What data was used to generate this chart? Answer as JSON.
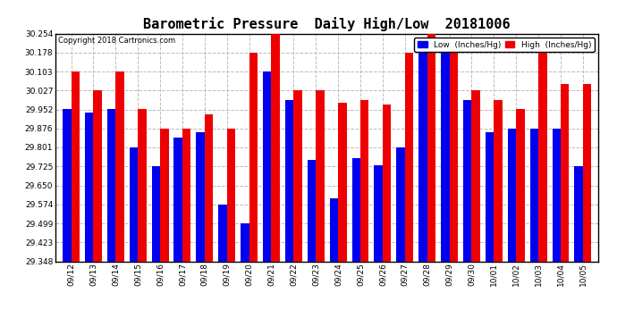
{
  "title": "Barometric Pressure  Daily High/Low  20181006",
  "copyright": "Copyright 2018 Cartronics.com",
  "legend_low": "Low  (Inches/Hg)",
  "legend_high": "High  (Inches/Hg)",
  "dates": [
    "09/12",
    "09/13",
    "09/14",
    "09/15",
    "09/16",
    "09/17",
    "09/18",
    "09/19",
    "09/20",
    "09/21",
    "09/22",
    "09/23",
    "09/24",
    "09/25",
    "09/26",
    "09/27",
    "09/28",
    "09/29",
    "09/30",
    "10/01",
    "10/02",
    "10/03",
    "10/04",
    "10/05"
  ],
  "low": [
    29.952,
    29.94,
    29.952,
    29.8,
    29.725,
    29.84,
    29.86,
    29.574,
    29.499,
    30.103,
    29.99,
    29.75,
    29.6,
    29.76,
    29.73,
    29.801,
    30.178,
    30.178,
    29.99,
    29.86,
    29.876,
    29.876,
    29.876,
    29.725
  ],
  "high": [
    30.103,
    30.027,
    30.103,
    29.952,
    29.876,
    29.876,
    29.933,
    29.876,
    30.178,
    30.254,
    30.027,
    30.027,
    29.98,
    29.99,
    29.97,
    30.178,
    30.254,
    30.178,
    30.027,
    29.99,
    29.952,
    30.178,
    30.054,
    30.054
  ],
  "ylim_min": 29.348,
  "ylim_max": 30.254,
  "yticks": [
    29.348,
    29.423,
    29.499,
    29.574,
    29.65,
    29.725,
    29.801,
    29.876,
    29.952,
    30.027,
    30.103,
    30.178,
    30.254
  ],
  "color_low": "#0000ee",
  "color_high": "#ee0000",
  "background_color": "#ffffff",
  "grid_color": "#bbbbbb",
  "title_fontsize": 11,
  "bar_width": 0.38
}
